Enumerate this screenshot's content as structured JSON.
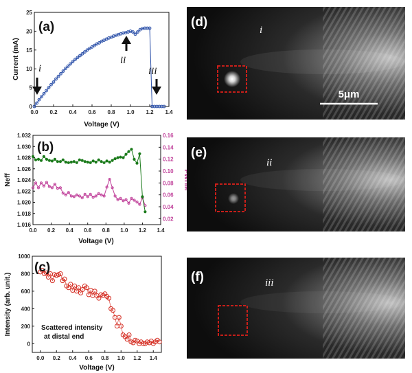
{
  "colors": {
    "current": "#2a4fa8",
    "neff": "#1a7a1a",
    "fwhm": "#c0409a",
    "intensity": "#d42a1f",
    "roi_box": "#e0201a",
    "image_bg": "#0d0d0d"
  },
  "panels": {
    "a": {
      "label": "(a)"
    },
    "b": {
      "label": "(b)"
    },
    "c": {
      "label": "(c)"
    },
    "d": {
      "label": "(d)",
      "roman": "i",
      "scale_bar": "5μm"
    },
    "e": {
      "label": "(e)",
      "roman": "ii"
    },
    "f": {
      "label": "(f)",
      "roman": "iii"
    }
  },
  "annotations_a": {
    "i": "i",
    "ii": "ii",
    "iii": "iii"
  },
  "annotation_c": {
    "line1": "Scattered intensity",
    "line2": "at distal end"
  },
  "chart_data": [
    {
      "id": "a",
      "type": "line",
      "xlabel": "Voltage (V)",
      "ylabel": "Current (mA)",
      "xlim": [
        0,
        1.4
      ],
      "ylim": [
        0,
        25
      ],
      "xticks": [
        "0.0",
        "0.2",
        "0.4",
        "0.6",
        "0.8",
        "1.0",
        "1.2",
        "1.4"
      ],
      "yticks": [
        "0",
        "5",
        "10",
        "15",
        "20",
        "25"
      ],
      "series": [
        {
          "color": "#2a4fa8",
          "marker": "open-circle",
          "x": [
            0,
            0.025,
            0.05,
            0.075,
            0.1,
            0.125,
            0.15,
            0.175,
            0.2,
            0.225,
            0.25,
            0.275,
            0.3,
            0.325,
            0.35,
            0.375,
            0.4,
            0.425,
            0.45,
            0.475,
            0.5,
            0.525,
            0.55,
            0.575,
            0.6,
            0.625,
            0.65,
            0.675,
            0.7,
            0.725,
            0.75,
            0.775,
            0.8,
            0.825,
            0.85,
            0.875,
            0.9,
            0.925,
            0.95,
            0.975,
            1.0,
            1.025,
            1.05,
            1.075,
            1.1,
            1.125,
            1.15,
            1.175,
            1.2,
            1.225,
            1.25,
            1.275,
            1.3,
            1.325,
            1.35
          ],
          "y": [
            0,
            0.9,
            1.8,
            2.6,
            3.4,
            4.2,
            5.0,
            5.8,
            6.5,
            7.3,
            8.0,
            8.7,
            9.4,
            10.1,
            10.7,
            11.3,
            11.9,
            12.5,
            13.0,
            13.5,
            14.0,
            14.5,
            15.0,
            15.4,
            15.8,
            16.2,
            16.6,
            16.9,
            17.3,
            17.6,
            17.9,
            18.2,
            18.4,
            18.7,
            18.9,
            19.1,
            19.3,
            19.5,
            19.6,
            19.8,
            20.0,
            19.8,
            19.2,
            19.8,
            20.4,
            20.7,
            20.8,
            20.8,
            20.8,
            0,
            0,
            0,
            0,
            0,
            0
          ]
        }
      ]
    },
    {
      "id": "b",
      "type": "line",
      "xlabel": "Voltage (V)",
      "ylabel": "Neff",
      "ylabel_right": "FWHM",
      "xlim": [
        0,
        1.4
      ],
      "ylim": [
        1.016,
        1.032
      ],
      "ylim_right": [
        0.01,
        0.16
      ],
      "xticks": [
        "0.0",
        "0.2",
        "0.4",
        "0.6",
        "0.8",
        "1.0",
        "1.2",
        "1.4"
      ],
      "yticks": [
        "1.016",
        "1.018",
        "1.020",
        "1.022",
        "1.024",
        "1.026",
        "1.028",
        "1.030",
        "1.032"
      ],
      "yticks_right": [
        "0.02",
        "0.04",
        "0.06",
        "0.08",
        "0.10",
        "0.12",
        "0.14",
        "0.16"
      ],
      "series": [
        {
          "axis": "left",
          "color": "#1a7a1a",
          "marker": "filled-circle",
          "x": [
            0.0,
            0.03,
            0.06,
            0.09,
            0.12,
            0.15,
            0.18,
            0.21,
            0.24,
            0.27,
            0.3,
            0.33,
            0.36,
            0.39,
            0.42,
            0.45,
            0.48,
            0.51,
            0.54,
            0.57,
            0.6,
            0.63,
            0.66,
            0.69,
            0.72,
            0.75,
            0.78,
            0.81,
            0.84,
            0.87,
            0.9,
            0.93,
            0.96,
            0.99,
            1.02,
            1.05,
            1.08,
            1.11,
            1.14,
            1.17,
            1.2,
            1.23
          ],
          "y": [
            1.0282,
            1.0276,
            1.0277,
            1.0275,
            1.0282,
            1.0277,
            1.0275,
            1.0274,
            1.0277,
            1.0273,
            1.0273,
            1.0276,
            1.0272,
            1.0271,
            1.0272,
            1.0273,
            1.0271,
            1.0276,
            1.0275,
            1.0273,
            1.0272,
            1.0271,
            1.0274,
            1.0272,
            1.0276,
            1.0273,
            1.0271,
            1.0274,
            1.0272,
            1.0275,
            1.0278,
            1.028,
            1.0281,
            1.028,
            1.0286,
            1.0291,
            1.0295,
            1.0277,
            1.027,
            1.0287,
            1.021,
            1.0183
          ]
        },
        {
          "axis": "right",
          "color": "#c0409a",
          "marker": "open-circle",
          "x": [
            0.0,
            0.03,
            0.06,
            0.09,
            0.12,
            0.15,
            0.18,
            0.21,
            0.24,
            0.27,
            0.3,
            0.33,
            0.36,
            0.39,
            0.42,
            0.45,
            0.48,
            0.51,
            0.54,
            0.57,
            0.6,
            0.63,
            0.66,
            0.69,
            0.72,
            0.75,
            0.78,
            0.81,
            0.84,
            0.87,
            0.9,
            0.93,
            0.96,
            0.99,
            1.02,
            1.05,
            1.08,
            1.11,
            1.14,
            1.17,
            1.2,
            1.23
          ],
          "y": [
            0.072,
            0.08,
            0.072,
            0.08,
            0.075,
            0.081,
            0.074,
            0.072,
            0.078,
            0.071,
            0.072,
            0.063,
            0.06,
            0.064,
            0.058,
            0.057,
            0.06,
            0.058,
            0.055,
            0.061,
            0.057,
            0.061,
            0.056,
            0.058,
            0.062,
            0.06,
            0.058,
            0.073,
            0.086,
            0.072,
            0.058,
            0.052,
            0.054,
            0.05,
            0.052,
            0.046,
            0.054,
            0.051,
            0.048,
            0.044,
            0.055,
            0.042
          ]
        }
      ]
    },
    {
      "id": "c",
      "type": "scatter",
      "xlabel": "Voltage (V)",
      "ylabel": "Intensity (arb. unit.)",
      "xlim": [
        -0.1,
        1.5
      ],
      "ylim": [
        -100,
        1000
      ],
      "xticks": [
        "0.0",
        "0.2",
        "0.4",
        "0.6",
        "0.8",
        "1.0",
        "1.2",
        "1.4"
      ],
      "yticks": [
        "0",
        "200",
        "400",
        "600",
        "800",
        "1000"
      ],
      "series": [
        {
          "color": "#d42a1f",
          "marker": "open-circle",
          "x": [
            0.0,
            0.025,
            0.05,
            0.075,
            0.1,
            0.125,
            0.15,
            0.175,
            0.2,
            0.225,
            0.25,
            0.275,
            0.3,
            0.325,
            0.35,
            0.375,
            0.4,
            0.425,
            0.45,
            0.475,
            0.5,
            0.525,
            0.55,
            0.575,
            0.6,
            0.625,
            0.65,
            0.675,
            0.7,
            0.725,
            0.75,
            0.775,
            0.8,
            0.825,
            0.85,
            0.875,
            0.9,
            0.925,
            0.95,
            0.975,
            1.0,
            1.025,
            1.05,
            1.075,
            1.1,
            1.125,
            1.15,
            1.175,
            1.2,
            1.225,
            1.25,
            1.275,
            1.3,
            1.325,
            1.35,
            1.375,
            1.4,
            1.425,
            1.45,
            1.475
          ],
          "y": [
            820,
            840,
            800,
            810,
            760,
            800,
            720,
            790,
            780,
            790,
            800,
            720,
            740,
            660,
            640,
            680,
            610,
            660,
            600,
            640,
            580,
            620,
            660,
            640,
            560,
            610,
            550,
            600,
            550,
            520,
            560,
            550,
            570,
            540,
            520,
            400,
            380,
            300,
            200,
            300,
            200,
            100,
            80,
            50,
            100,
            20,
            10,
            40,
            30,
            0,
            20,
            0,
            0,
            20,
            10,
            30,
            0,
            20,
            40,
            20
          ]
        }
      ]
    }
  ]
}
